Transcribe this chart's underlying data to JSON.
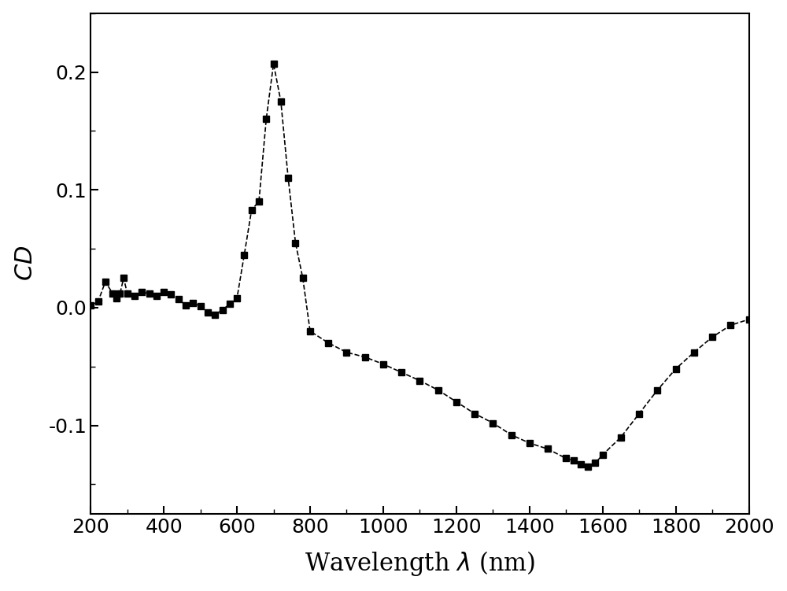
{
  "title": "",
  "xlabel": "Wavelength λ (nm)",
  "ylabel": "CD",
  "xlim": [
    200,
    2000
  ],
  "ylim": [
    -0.175,
    0.25
  ],
  "yticks": [
    -0.1,
    0.0,
    0.1,
    0.2
  ],
  "xticks": [
    200,
    400,
    600,
    800,
    1000,
    1200,
    1400,
    1600,
    1800,
    2000
  ],
  "background_color": "#ffffff",
  "line_color": "#000000",
  "marker": "s",
  "markersize": 6,
  "linewidth": 1.2,
  "linestyle": "--",
  "x": [
    200,
    220,
    240,
    260,
    270,
    280,
    290,
    300,
    320,
    340,
    360,
    380,
    400,
    420,
    440,
    460,
    480,
    500,
    520,
    540,
    560,
    580,
    600,
    620,
    640,
    660,
    680,
    700,
    720,
    740,
    760,
    780,
    800,
    850,
    900,
    950,
    1000,
    1050,
    1100,
    1150,
    1200,
    1250,
    1300,
    1350,
    1400,
    1450,
    1500,
    1520,
    1540,
    1560,
    1580,
    1600,
    1650,
    1700,
    1750,
    1800,
    1850,
    1900,
    1950,
    2000
  ],
  "y": [
    0.002,
    0.005,
    0.022,
    0.012,
    0.008,
    0.012,
    0.025,
    0.012,
    0.01,
    0.013,
    0.012,
    0.01,
    0.013,
    0.011,
    0.007,
    0.002,
    0.004,
    0.001,
    -0.004,
    -0.006,
    -0.002,
    0.003,
    0.008,
    0.045,
    0.083,
    0.09,
    0.16,
    0.207,
    0.175,
    0.11,
    0.055,
    0.025,
    -0.02,
    -0.03,
    -0.038,
    -0.042,
    -0.048,
    -0.055,
    -0.062,
    -0.07,
    -0.08,
    -0.09,
    -0.098,
    -0.108,
    -0.115,
    -0.12,
    -0.128,
    -0.13,
    -0.133,
    -0.135,
    -0.132,
    -0.125,
    -0.11,
    -0.09,
    -0.07,
    -0.052,
    -0.038,
    -0.025,
    -0.015,
    -0.01
  ]
}
